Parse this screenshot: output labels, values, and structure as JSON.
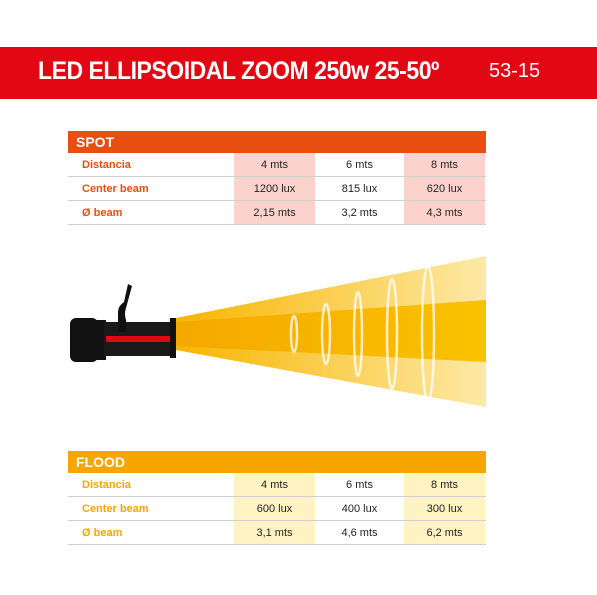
{
  "header": {
    "title": "LED ELLIPSOIDAL ZOOM 250w 25-50º",
    "code": "53-15"
  },
  "spot": {
    "heading": "SPOT",
    "rows": [
      {
        "label": "Distancia",
        "values": [
          "4 mts",
          "6 mts",
          "8 mts"
        ]
      },
      {
        "label": "Center beam",
        "values": [
          "1200 lux",
          "815 lux",
          "620 lux"
        ]
      },
      {
        "label": "Ø beam",
        "values": [
          "2,15 mts",
          "3,2 mts",
          "4,3 mts"
        ]
      }
    ]
  },
  "flood": {
    "heading": "FLOOD",
    "rows": [
      {
        "label": "Distancia",
        "values": [
          "4 mts",
          "6 mts",
          "8 mts"
        ]
      },
      {
        "label": "Center beam",
        "values": [
          "600 lux",
          "400 lux",
          "300 lux"
        ]
      },
      {
        "label": "Ø beam",
        "values": [
          "3,1 mts",
          "4,6 mts",
          "6,2 mts"
        ]
      }
    ]
  },
  "colors": {
    "brand_red": "#e30613",
    "spot_orange": "#e84e0f",
    "flood_yellow": "#f7a600",
    "spot_highlight": "#fbd3cc",
    "flood_highlight": "#fff3c4"
  },
  "icons": [
    "spotlight-fixture-icon",
    "light-beam-icon"
  ]
}
